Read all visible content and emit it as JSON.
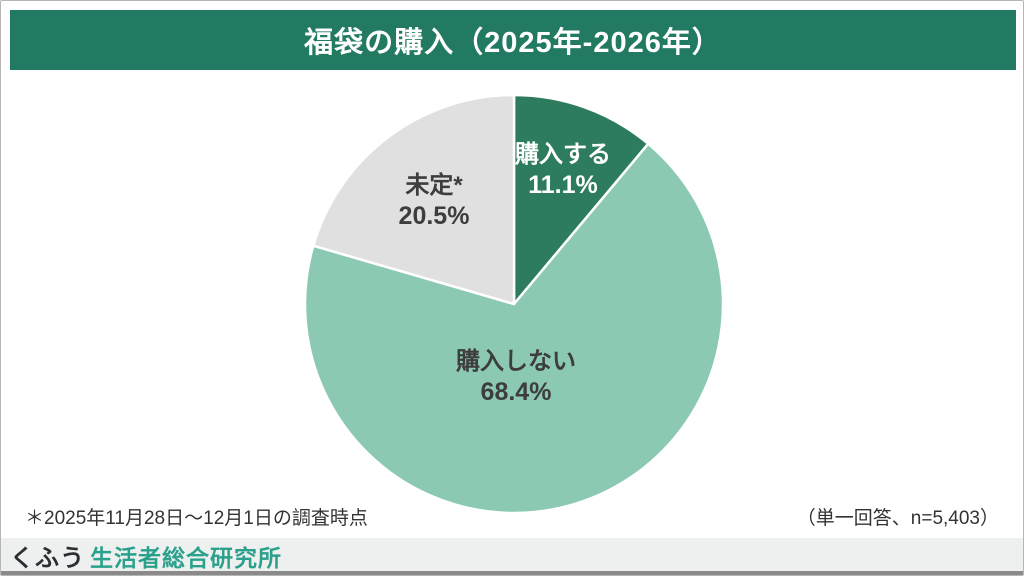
{
  "header": {
    "title": "福袋の購入（2025年-2026年）"
  },
  "chart_data": {
    "type": "pie",
    "title": "福袋の購入（2025年-2026年）",
    "labels": [
      "購入する",
      "購入しない",
      "未定*"
    ],
    "values": [
      11.1,
      68.4,
      20.5
    ],
    "unit": "%",
    "start_angle_deg": 0,
    "direction": "clockwise",
    "slice_colors": [
      "#2d7c5e",
      "#8cc9b3",
      "#e0e0e0"
    ],
    "display_labels": [
      {
        "name": "購入する",
        "value": "11.1%",
        "text_color": "#ffffff"
      },
      {
        "name": "購入しない",
        "value": "68.4%",
        "text_color": "#3d3d3d"
      },
      {
        "name": "未定*",
        "value": "20.5%",
        "text_color": "#3d3d3d"
      }
    ]
  },
  "notes": {
    "left": "＊2025年11月28日〜12月1日の調査時点",
    "right": "（単一回答、n=5,403）"
  },
  "footer": {
    "logo_primary": "くふう",
    "logo_secondary": "生活者総合研究所"
  },
  "colors": {
    "header_bg": "#237a62",
    "text_dark": "#3d3d3d",
    "note_text": "#333333",
    "footer_bg": "#eef0ef",
    "logo_dark": "#2b2f33",
    "logo_teal": "#2ba18c",
    "bottom_line": "#8a8a8a",
    "pie_stroke": "#ffffff"
  }
}
